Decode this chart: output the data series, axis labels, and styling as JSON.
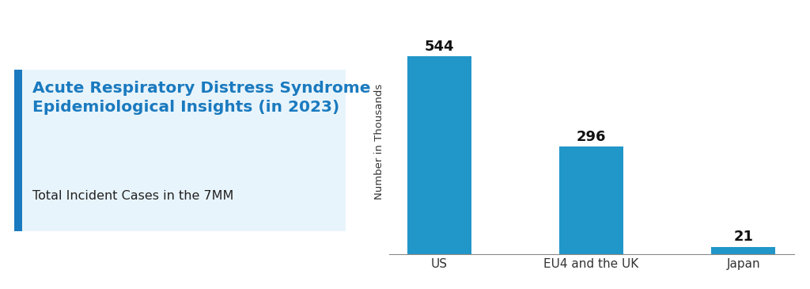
{
  "categories": [
    "US",
    "EU4 and the UK",
    "Japan"
  ],
  "values": [
    544,
    296,
    21
  ],
  "bar_color": "#2196C8",
  "title_line1": "Acute Respiratory Distress Syndrome",
  "title_line2": "Epidemiological Insights (in 2023)",
  "subtitle": "Total Incident Cases in the 7MM",
  "ylabel": "Number in Thousands",
  "title_color": "#1a7abf",
  "subtitle_color": "#222222",
  "bar_label_color": "#111111",
  "bg_box_color": "#e8f4fb",
  "accent_bar_color": "#1a7abf",
  "ylim": [
    0,
    620
  ],
  "title_fontsize": 14.5,
  "subtitle_fontsize": 11.5,
  "bar_label_fontsize": 13,
  "ylabel_fontsize": 9.5,
  "xtick_fontsize": 11
}
